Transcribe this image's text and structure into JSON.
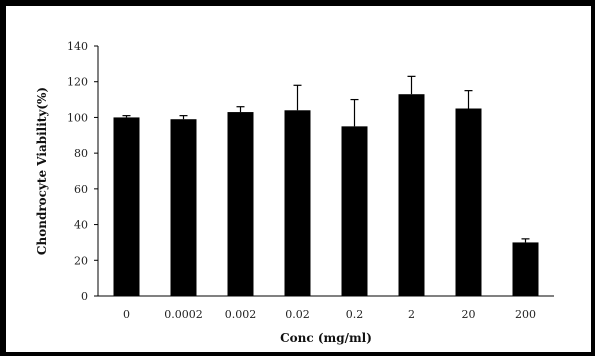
{
  "chart_data": {
    "type": "bar",
    "xlabel": "Conc (mg/ml)",
    "ylabel": "Chondrocyte Viability(%)",
    "categories": [
      "0",
      "0.0002",
      "0.002",
      "0.02",
      "0.2",
      "2",
      "20",
      "200"
    ],
    "values": [
      100,
      99,
      103,
      104,
      95,
      113,
      105,
      30
    ],
    "errors": [
      1,
      2,
      3,
      14,
      15,
      10,
      10,
      2
    ],
    "ylim": [
      0,
      140
    ],
    "yticks": [
      "0",
      "20",
      "40",
      "60",
      "80",
      "100",
      "120",
      "140"
    ],
    "grid": false,
    "bar_color": "#000000"
  }
}
